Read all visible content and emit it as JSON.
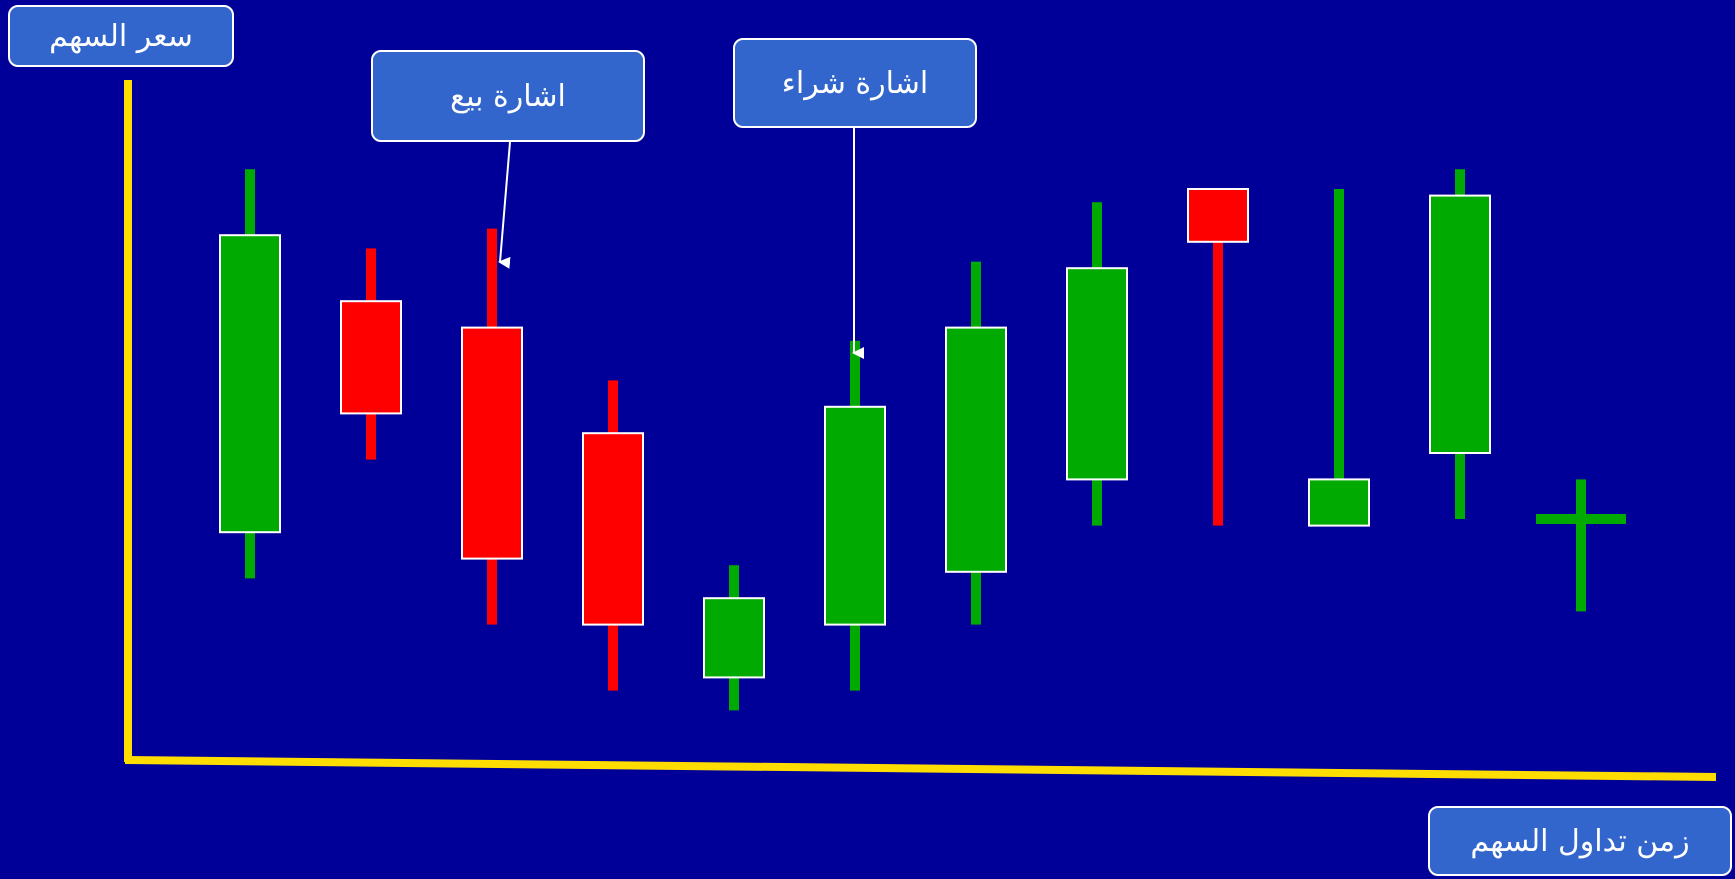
{
  "labels": {
    "y_axis": "سعر السهم",
    "x_axis": "زمن تداول السهم",
    "sell_signal": "اشارة بيع",
    "buy_signal": "اشارة شراء"
  },
  "colors": {
    "background": "#000099",
    "axis": "#ffdd00",
    "bullish": "#00aa00",
    "bearish": "#ff0000",
    "callout": "#3366cc"
  },
  "chart_data": {
    "type": "candlestick",
    "xlabel": "زمن تداول السهم",
    "ylabel": "سعر السهم",
    "ylim": [
      0,
      100
    ],
    "grid": false,
    "candles": [
      {
        "direction": "up",
        "open": 33,
        "close": 78,
        "high": 88,
        "low": 26
      },
      {
        "direction": "down",
        "open": 68,
        "close": 51,
        "high": 76,
        "low": 44
      },
      {
        "direction": "down",
        "open": 64,
        "close": 29,
        "high": 79,
        "low": 19
      },
      {
        "direction": "down",
        "open": 48,
        "close": 19,
        "high": 56,
        "low": 9
      },
      {
        "direction": "up",
        "open": 11,
        "close": 23,
        "high": 28,
        "low": 6
      },
      {
        "direction": "up",
        "open": 19,
        "close": 52,
        "high": 62,
        "low": 9
      },
      {
        "direction": "up",
        "open": 27,
        "close": 64,
        "high": 74,
        "low": 19
      },
      {
        "direction": "up",
        "open": 41,
        "close": 73,
        "high": 83,
        "low": 34
      },
      {
        "direction": "down",
        "open": 85,
        "close": 77,
        "high": 85,
        "low": 34
      },
      {
        "direction": "up",
        "open": 34,
        "close": 41,
        "high": 85,
        "low": 34
      },
      {
        "direction": "up",
        "open": 45,
        "close": 84,
        "high": 88,
        "low": 35
      },
      {
        "direction": "doji",
        "open": 35,
        "close": 35,
        "high": 41,
        "low": 21
      }
    ],
    "annotations": [
      {
        "text": "اشارة بيع",
        "target_candle": 2
      },
      {
        "text": "اشارة شراء",
        "target_candle": 5
      }
    ]
  }
}
